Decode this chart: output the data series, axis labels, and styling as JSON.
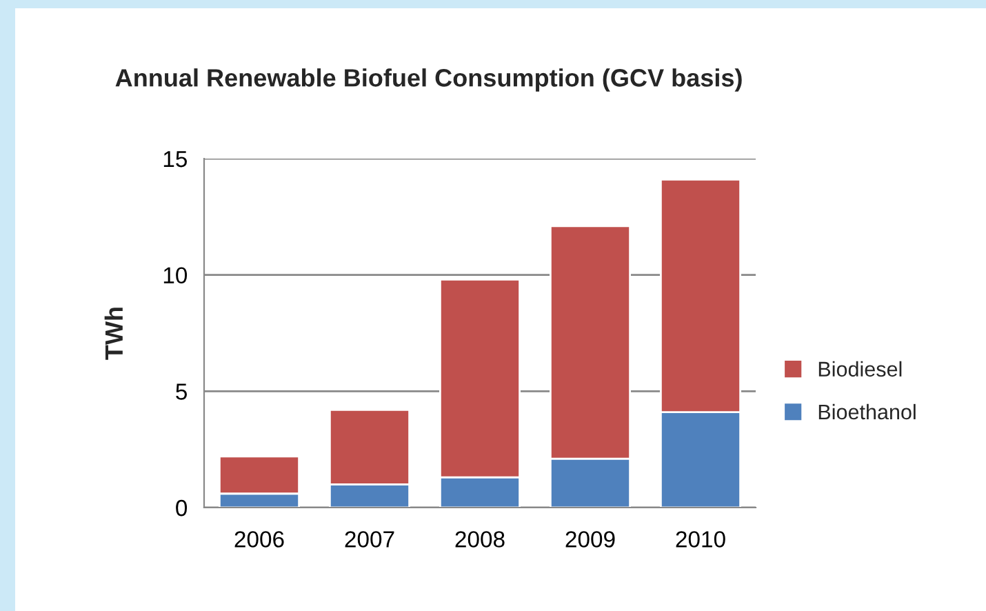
{
  "chart_data": {
    "type": "bar",
    "title": "Annual Renewable Biofuel Consumption (GCV basis)",
    "ylabel": "TWh",
    "categories": [
      "2006",
      "2007",
      "2008",
      "2009",
      "2010"
    ],
    "series": [
      {
        "name": "Bioethanol",
        "color": "#4f81bd",
        "values": [
          0.6,
          1.0,
          1.3,
          2.1,
          4.1
        ]
      },
      {
        "name": "Biodiesel",
        "color": "#c0504d",
        "values": [
          1.6,
          3.2,
          8.5,
          10.0,
          10.0
        ]
      }
    ],
    "stacked": true,
    "ylim": [
      0,
      15
    ],
    "yticks": [
      0,
      5,
      10,
      15
    ],
    "grid": "y",
    "legend": "right"
  }
}
